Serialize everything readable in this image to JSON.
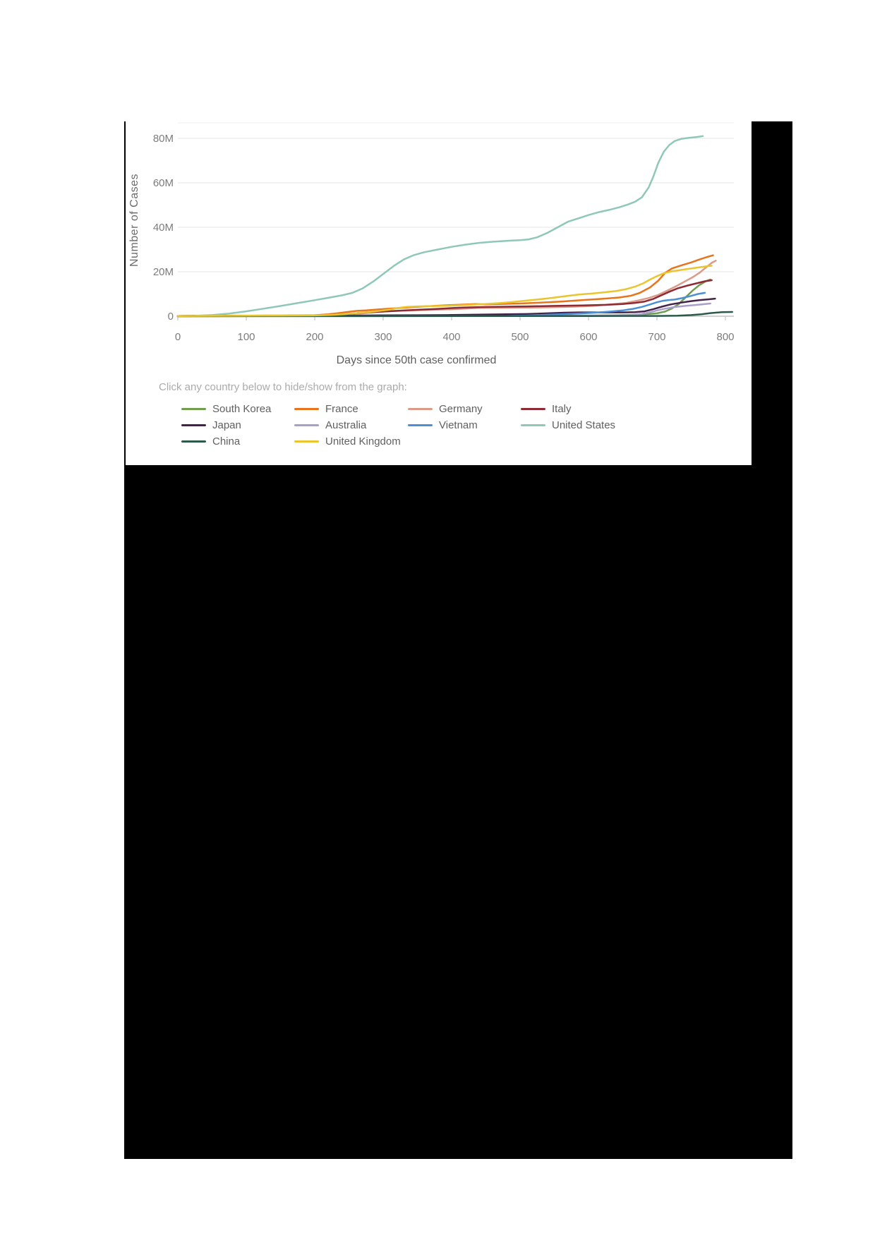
{
  "backdrop_color": "#000000",
  "panel_background": "#ffffff",
  "chart_data": {
    "type": "line",
    "title": "",
    "xlabel": "Days since 50th case confirmed",
    "ylabel": "Number of Cases",
    "legend_note": "Click any country below to hide/show from the graph:",
    "xlim": [
      0,
      810
    ],
    "ylim": [
      0,
      84000000
    ],
    "grid": true,
    "x_ticks": [
      0,
      100,
      200,
      300,
      400,
      500,
      600,
      700,
      800
    ],
    "y_ticks": [
      {
        "value_millions": 0,
        "label": "0"
      },
      {
        "value_millions": 20,
        "label": "20M"
      },
      {
        "value_millions": 40,
        "label": "40M"
      },
      {
        "value_millions": 60,
        "label": "60M"
      },
      {
        "value_millions": 80,
        "label": "80M"
      }
    ],
    "unit": "cases (millions)",
    "legend_position": "bottom",
    "series": [
      {
        "name": "South Korea",
        "color": "#6f9e4f",
        "points_day_millions": [
          [
            0,
            0.01
          ],
          [
            100,
            0.02
          ],
          [
            200,
            0.03
          ],
          [
            300,
            0.06
          ],
          [
            350,
            0.08
          ],
          [
            400,
            0.1
          ],
          [
            450,
            0.12
          ],
          [
            500,
            0.15
          ],
          [
            550,
            0.2
          ],
          [
            600,
            0.3
          ],
          [
            640,
            0.45
          ],
          [
            660,
            0.55
          ],
          [
            680,
            0.8
          ],
          [
            700,
            1.3
          ],
          [
            712,
            2.1
          ],
          [
            722,
            3.5
          ],
          [
            732,
            5.5
          ],
          [
            742,
            8.5
          ],
          [
            752,
            11.5
          ],
          [
            762,
            14.0
          ],
          [
            772,
            15.8
          ],
          [
            778,
            16.5
          ]
        ]
      },
      {
        "name": "France",
        "color": "#e8751c",
        "points_day_millions": [
          [
            0,
            0.05
          ],
          [
            50,
            0.1
          ],
          [
            100,
            0.2
          ],
          [
            150,
            0.25
          ],
          [
            200,
            0.45
          ],
          [
            220,
            0.9
          ],
          [
            235,
            1.4
          ],
          [
            250,
            2.0
          ],
          [
            262,
            2.4
          ],
          [
            275,
            2.6
          ],
          [
            300,
            3.2
          ],
          [
            330,
            3.8
          ],
          [
            360,
            4.4
          ],
          [
            390,
            4.9
          ],
          [
            415,
            5.2
          ],
          [
            435,
            5.45
          ],
          [
            450,
            5.3
          ],
          [
            470,
            5.45
          ],
          [
            500,
            5.7
          ],
          [
            530,
            6.1
          ],
          [
            560,
            6.6
          ],
          [
            590,
            7.2
          ],
          [
            620,
            7.8
          ],
          [
            645,
            8.4
          ],
          [
            662,
            9.2
          ],
          [
            675,
            10.5
          ],
          [
            690,
            13.0
          ],
          [
            702,
            16.0
          ],
          [
            712,
            19.5
          ],
          [
            722,
            21.5
          ],
          [
            735,
            22.8
          ],
          [
            750,
            24.2
          ],
          [
            762,
            25.5
          ],
          [
            772,
            26.5
          ],
          [
            782,
            27.4
          ]
        ]
      },
      {
        "name": "Germany",
        "color": "#dc9b8a",
        "points_day_millions": [
          [
            0,
            0.05
          ],
          [
            100,
            0.2
          ],
          [
            150,
            0.22
          ],
          [
            200,
            0.3
          ],
          [
            230,
            0.5
          ],
          [
            250,
            0.9
          ],
          [
            265,
            1.2
          ],
          [
            285,
            1.7
          ],
          [
            305,
            2.2
          ],
          [
            330,
            2.5
          ],
          [
            360,
            2.8
          ],
          [
            400,
            3.1
          ],
          [
            440,
            3.7
          ],
          [
            470,
            3.75
          ],
          [
            500,
            3.85
          ],
          [
            540,
            4.0
          ],
          [
            580,
            4.3
          ],
          [
            610,
            4.7
          ],
          [
            635,
            5.4
          ],
          [
            655,
            6.0
          ],
          [
            672,
            7.0
          ],
          [
            688,
            8.2
          ],
          [
            702,
            9.6
          ],
          [
            715,
            11.5
          ],
          [
            728,
            13.5
          ],
          [
            740,
            15.5
          ],
          [
            752,
            17.5
          ],
          [
            762,
            19.5
          ],
          [
            772,
            22.0
          ],
          [
            780,
            24.0
          ],
          [
            786,
            25.0
          ]
        ]
      },
      {
        "name": "Italy",
        "color": "#8e2a33",
        "points_day_millions": [
          [
            0,
            0.1
          ],
          [
            30,
            0.22
          ],
          [
            60,
            0.24
          ],
          [
            100,
            0.26
          ],
          [
            150,
            0.28
          ],
          [
            200,
            0.32
          ],
          [
            225,
            0.5
          ],
          [
            245,
            0.9
          ],
          [
            262,
            1.4
          ],
          [
            280,
            1.8
          ],
          [
            300,
            2.1
          ],
          [
            325,
            2.5
          ],
          [
            350,
            2.9
          ],
          [
            380,
            3.3
          ],
          [
            410,
            3.8
          ],
          [
            430,
            4.0
          ],
          [
            455,
            4.15
          ],
          [
            480,
            4.3
          ],
          [
            510,
            4.4
          ],
          [
            550,
            4.65
          ],
          [
            590,
            4.85
          ],
          [
            625,
            5.1
          ],
          [
            650,
            5.5
          ],
          [
            668,
            6.0
          ],
          [
            682,
            6.6
          ],
          [
            695,
            7.8
          ],
          [
            707,
            9.5
          ],
          [
            718,
            11.0
          ],
          [
            730,
            12.5
          ],
          [
            745,
            13.8
          ],
          [
            758,
            14.8
          ],
          [
            770,
            15.7
          ],
          [
            780,
            16.2
          ]
        ]
      },
      {
        "name": "Japan",
        "color": "#44234a",
        "points_day_millions": [
          [
            0,
            0.02
          ],
          [
            100,
            0.05
          ],
          [
            150,
            0.1
          ],
          [
            200,
            0.15
          ],
          [
            250,
            0.25
          ],
          [
            300,
            0.4
          ],
          [
            350,
            0.45
          ],
          [
            400,
            0.55
          ],
          [
            450,
            0.75
          ],
          [
            480,
            0.85
          ],
          [
            510,
            1.0
          ],
          [
            540,
            1.3
          ],
          [
            565,
            1.6
          ],
          [
            585,
            1.7
          ],
          [
            620,
            1.72
          ],
          [
            650,
            1.73
          ],
          [
            668,
            1.8
          ],
          [
            682,
            2.2
          ],
          [
            695,
            3.2
          ],
          [
            707,
            4.3
          ],
          [
            720,
            5.3
          ],
          [
            735,
            6.1
          ],
          [
            750,
            6.8
          ],
          [
            762,
            7.2
          ],
          [
            775,
            7.6
          ],
          [
            785,
            7.9
          ]
        ]
      },
      {
        "name": "Australia",
        "color": "#a99fca",
        "points_day_millions": [
          [
            0,
            0.01
          ],
          [
            100,
            0.02
          ],
          [
            200,
            0.03
          ],
          [
            300,
            0.03
          ],
          [
            400,
            0.04
          ],
          [
            500,
            0.08
          ],
          [
            550,
            0.15
          ],
          [
            600,
            0.25
          ],
          [
            640,
            0.35
          ],
          [
            662,
            0.5
          ],
          [
            678,
            1.0
          ],
          [
            690,
            1.8
          ],
          [
            700,
            2.6
          ],
          [
            712,
            3.4
          ],
          [
            725,
            4.1
          ],
          [
            740,
            4.6
          ],
          [
            755,
            5.0
          ],
          [
            768,
            5.4
          ],
          [
            778,
            5.7
          ]
        ]
      },
      {
        "name": "Vietnam",
        "color": "#4a8fd8",
        "points_day_millions": [
          [
            0,
            0.01
          ],
          [
            200,
            0.02
          ],
          [
            300,
            0.03
          ],
          [
            400,
            0.05
          ],
          [
            480,
            0.1
          ],
          [
            510,
            0.3
          ],
          [
            535,
            0.6
          ],
          [
            560,
            0.9
          ],
          [
            585,
            1.2
          ],
          [
            610,
            1.6
          ],
          [
            632,
            2.1
          ],
          [
            650,
            2.6
          ],
          [
            665,
            3.3
          ],
          [
            678,
            4.2
          ],
          [
            690,
            5.3
          ],
          [
            700,
            6.3
          ],
          [
            708,
            6.9
          ],
          [
            716,
            7.2
          ],
          [
            726,
            7.5
          ],
          [
            736,
            8.1
          ],
          [
            748,
            9.0
          ],
          [
            760,
            10.0
          ],
          [
            770,
            10.5
          ]
        ]
      },
      {
        "name": "United States",
        "color": "#8fc8b9",
        "points_day_millions": [
          [
            0,
            0.05
          ],
          [
            25,
            0.2
          ],
          [
            50,
            0.5
          ],
          [
            75,
            1.2
          ],
          [
            100,
            2.2
          ],
          [
            125,
            3.4
          ],
          [
            150,
            4.6
          ],
          [
            175,
            5.9
          ],
          [
            200,
            7.2
          ],
          [
            220,
            8.3
          ],
          [
            240,
            9.4
          ],
          [
            255,
            10.5
          ],
          [
            270,
            12.5
          ],
          [
            285,
            15.5
          ],
          [
            300,
            19.0
          ],
          [
            315,
            22.5
          ],
          [
            330,
            25.5
          ],
          [
            345,
            27.5
          ],
          [
            360,
            28.8
          ],
          [
            380,
            30.0
          ],
          [
            400,
            31.2
          ],
          [
            420,
            32.2
          ],
          [
            440,
            33.0
          ],
          [
            460,
            33.5
          ],
          [
            480,
            33.9
          ],
          [
            500,
            34.2
          ],
          [
            512,
            34.5
          ],
          [
            525,
            35.5
          ],
          [
            540,
            37.5
          ],
          [
            555,
            40.0
          ],
          [
            570,
            42.5
          ],
          [
            585,
            44.0
          ],
          [
            600,
            45.5
          ],
          [
            615,
            46.8
          ],
          [
            630,
            47.8
          ],
          [
            645,
            49.0
          ],
          [
            658,
            50.3
          ],
          [
            668,
            51.5
          ],
          [
            678,
            53.5
          ],
          [
            688,
            58.0
          ],
          [
            695,
            63.0
          ],
          [
            702,
            69.0
          ],
          [
            710,
            74.0
          ],
          [
            718,
            77.0
          ],
          [
            726,
            78.8
          ],
          [
            736,
            79.8
          ],
          [
            748,
            80.3
          ],
          [
            758,
            80.6
          ],
          [
            767,
            81.0
          ]
        ]
      },
      {
        "name": "China",
        "color": "#2b594a",
        "points_day_millions": [
          [
            0,
            0.06
          ],
          [
            50,
            0.08
          ],
          [
            100,
            0.09
          ],
          [
            200,
            0.09
          ],
          [
            300,
            0.1
          ],
          [
            400,
            0.1
          ],
          [
            500,
            0.1
          ],
          [
            600,
            0.11
          ],
          [
            650,
            0.12
          ],
          [
            700,
            0.14
          ],
          [
            730,
            0.25
          ],
          [
            750,
            0.5
          ],
          [
            765,
            0.9
          ],
          [
            778,
            1.4
          ],
          [
            795,
            1.8
          ],
          [
            810,
            1.9
          ]
        ]
      },
      {
        "name": "United Kingdom",
        "color": "#e9c52f",
        "points_day_millions": [
          [
            0,
            0.05
          ],
          [
            50,
            0.15
          ],
          [
            100,
            0.25
          ],
          [
            150,
            0.28
          ],
          [
            200,
            0.35
          ],
          [
            225,
            0.6
          ],
          [
            245,
            0.95
          ],
          [
            262,
            1.4
          ],
          [
            280,
            1.9
          ],
          [
            295,
            2.4
          ],
          [
            310,
            3.0
          ],
          [
            322,
            3.7
          ],
          [
            335,
            4.2
          ],
          [
            350,
            4.4
          ],
          [
            370,
            4.5
          ],
          [
            395,
            4.7
          ],
          [
            420,
            5.0
          ],
          [
            445,
            5.4
          ],
          [
            465,
            5.8
          ],
          [
            485,
            6.3
          ],
          [
            505,
            6.9
          ],
          [
            525,
            7.5
          ],
          [
            545,
            8.2
          ],
          [
            565,
            9.0
          ],
          [
            585,
            9.7
          ],
          [
            605,
            10.2
          ],
          [
            622,
            10.7
          ],
          [
            640,
            11.3
          ],
          [
            655,
            12.2
          ],
          [
            668,
            13.3
          ],
          [
            680,
            14.8
          ],
          [
            690,
            16.5
          ],
          [
            700,
            18.0
          ],
          [
            710,
            19.3
          ],
          [
            722,
            20.2
          ],
          [
            735,
            20.8
          ],
          [
            748,
            21.4
          ],
          [
            760,
            21.9
          ],
          [
            772,
            22.4
          ],
          [
            780,
            22.7
          ]
        ]
      }
    ],
    "style": {
      "gridline_color": "#e9e9e9",
      "zeroline_color": "#b7b7b7",
      "tick_mark_color": "#c9c9c9",
      "tick_text_color": "#7c7c7c",
      "line_width": 2.5
    }
  }
}
